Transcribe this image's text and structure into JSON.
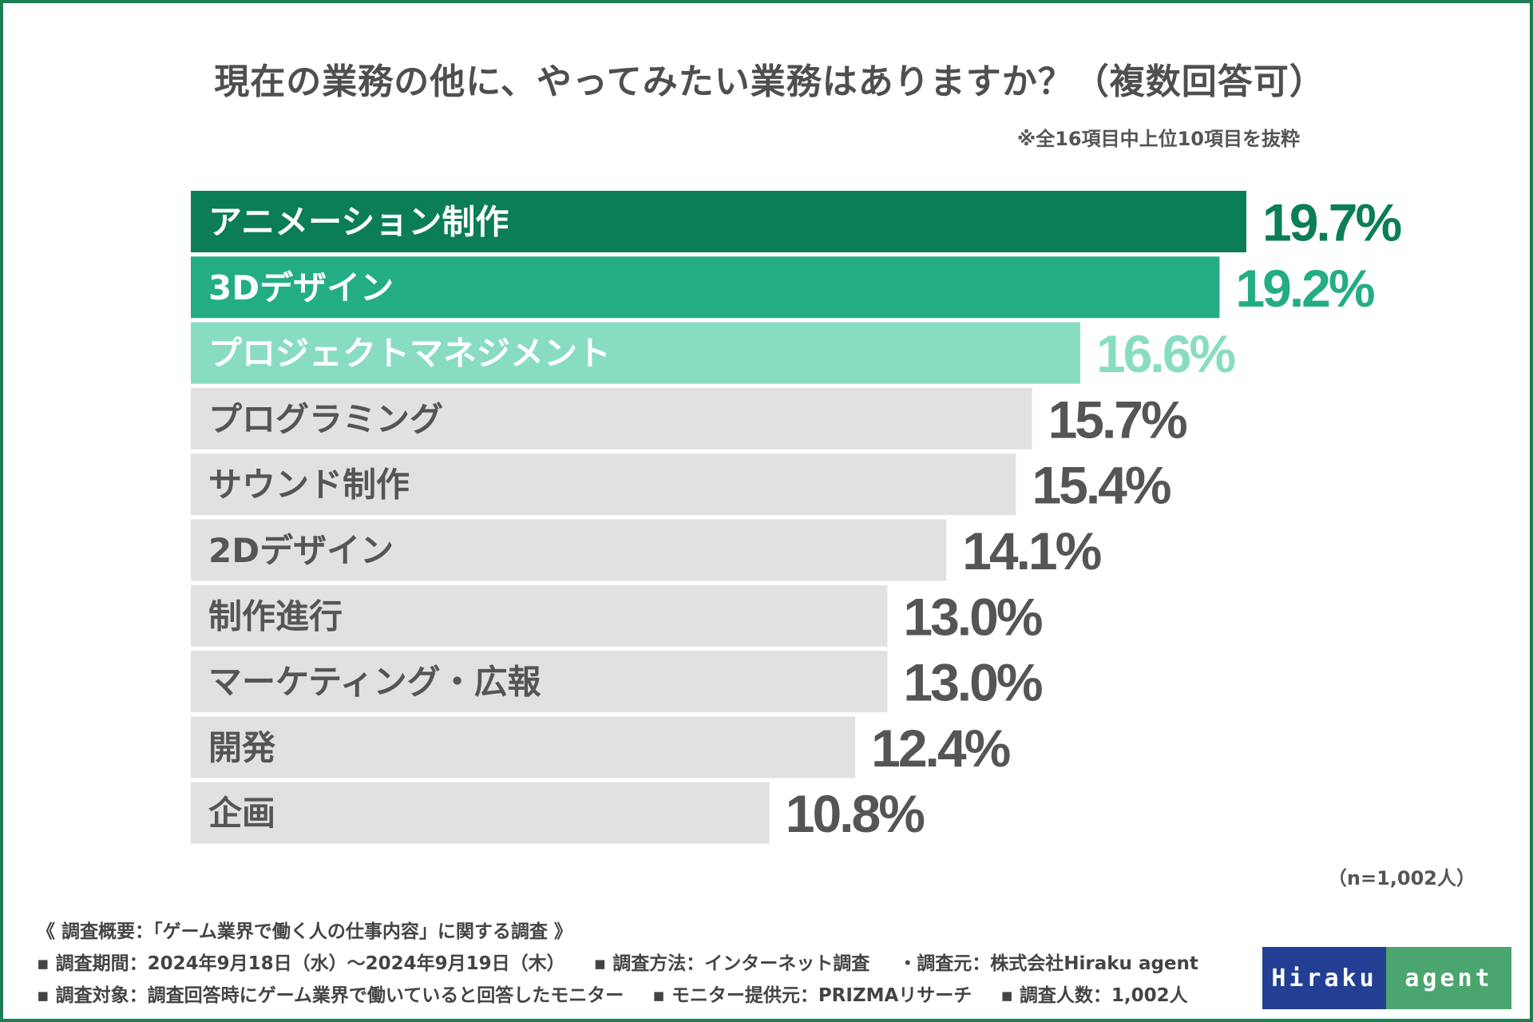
{
  "chart_data": {
    "type": "bar",
    "orientation": "horizontal",
    "title": "現在の業務の他に、やってみたい業務はありますか？（複数回答可）",
    "subtitle": "※全16項目中上位10項目を抜粋",
    "categories": [
      "アニメーション制作",
      "3Dデザイン",
      "プロジェクトマネジメント",
      "プログラミング",
      "サウンド制作",
      "2Dデザイン",
      "制作進行",
      "マーケティング・広報",
      "開発",
      "企画"
    ],
    "values": [
      19.7,
      19.2,
      16.6,
      15.7,
      15.4,
      14.1,
      13.0,
      13.0,
      12.4,
      10.8
    ],
    "value_labels": [
      "19.7%",
      "19.2%",
      "16.6%",
      "15.7%",
      "15.4%",
      "14.1%",
      "13.0%",
      "13.0%",
      "12.4%",
      "10.8%"
    ],
    "unit": "%",
    "xlim": [
      0,
      19.7
    ],
    "grid": false,
    "sample_size": "（n=1,002人）"
  },
  "colors": {
    "rank1": "#0b7d57",
    "rank2": "#24ad84",
    "rank3": "#88dcc2",
    "other": "#e1e1e1",
    "label_light": "#ffffff",
    "label_dark": "#555555",
    "value_other": "#555555",
    "border": "#1f7d54"
  },
  "footer": {
    "overview": "《 調査概要：「ゲーム業界で働く人の仕事内容」に関する調査 》",
    "period": "▪ 調査期間：2024年9月18日（水）～2024年9月19日（木）",
    "method": "▪ 調査方法：インターネット調査",
    "source": "・調査元：株式会社Hiraku agent",
    "target": "▪ 調査対象：調査回答時にゲーム業界で働いていると回答したモニター",
    "monitor": "▪ モニター提供元：PRIZMAリサーチ",
    "count": "▪ 調査人数：1,002人"
  },
  "logo": {
    "left": "Hiraku",
    "right": "agent"
  }
}
